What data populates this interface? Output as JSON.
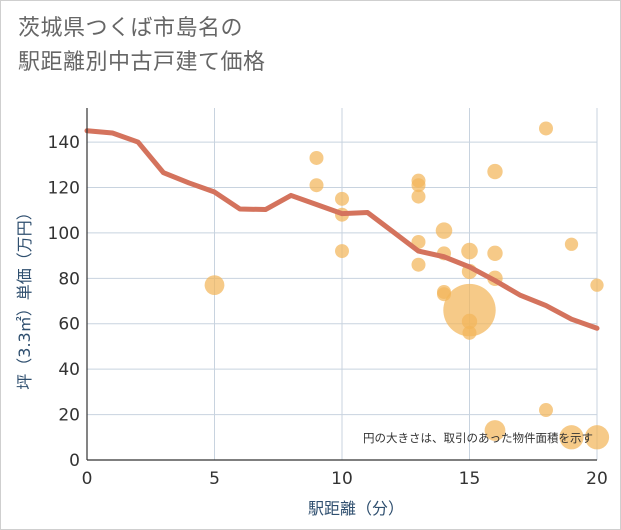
{
  "title_lines": [
    "茨城県つくば市島名の",
    "駅距離別中古戸建て価格"
  ],
  "chart_data": {
    "type": "scatter",
    "title": "茨城県つくば市島名の駅距離別中古戸建て価格",
    "xlabel": "駅距離（分）",
    "ylabel": "坪（3.3㎡）単価（万円）",
    "xlim": [
      0,
      20
    ],
    "ylim": [
      0,
      155
    ],
    "xticks": [
      0,
      5,
      10,
      15,
      20
    ],
    "yticks": [
      0,
      20,
      40,
      60,
      80,
      100,
      120,
      140
    ],
    "grid": true,
    "note": "円の大きさは、取引のあった物件面積を示す",
    "colors": {
      "bubble": "#f2b55a",
      "line": "#d4735d",
      "grid": "#c8d3df"
    },
    "series": [
      {
        "type": "scatter",
        "points": [
          {
            "x": 5,
            "y": 77,
            "s": 2
          },
          {
            "x": 9,
            "y": 133,
            "s": 1
          },
          {
            "x": 9,
            "y": 121,
            "s": 1
          },
          {
            "x": 10,
            "y": 115,
            "s": 1
          },
          {
            "x": 10,
            "y": 108,
            "s": 1
          },
          {
            "x": 10,
            "y": 92,
            "s": 1
          },
          {
            "x": 13,
            "y": 123,
            "s": 1
          },
          {
            "x": 13,
            "y": 121,
            "s": 1
          },
          {
            "x": 13,
            "y": 116,
            "s": 1
          },
          {
            "x": 13,
            "y": 96,
            "s": 1
          },
          {
            "x": 13,
            "y": 86,
            "s": 1
          },
          {
            "x": 14,
            "y": 101,
            "s": 1.4
          },
          {
            "x": 14,
            "y": 91,
            "s": 1
          },
          {
            "x": 14,
            "y": 74,
            "s": 1
          },
          {
            "x": 14,
            "y": 73,
            "s": 1
          },
          {
            "x": 15,
            "y": 92,
            "s": 1.4
          },
          {
            "x": 15,
            "y": 83,
            "s": 1.2
          },
          {
            "x": 15,
            "y": 66,
            "s": 14
          },
          {
            "x": 15,
            "y": 61,
            "s": 1.2
          },
          {
            "x": 15,
            "y": 56,
            "s": 1
          },
          {
            "x": 16,
            "y": 127,
            "s": 1.2
          },
          {
            "x": 16,
            "y": 91,
            "s": 1.2
          },
          {
            "x": 16,
            "y": 80,
            "s": 1.2
          },
          {
            "x": 16,
            "y": 13,
            "s": 2.2
          },
          {
            "x": 18,
            "y": 146,
            "s": 1
          },
          {
            "x": 18,
            "y": 22,
            "s": 1
          },
          {
            "x": 19,
            "y": 95,
            "s": 0.9
          },
          {
            "x": 19,
            "y": 10,
            "s": 3
          },
          {
            "x": 20,
            "y": 77,
            "s": 0.9
          },
          {
            "x": 20,
            "y": 10,
            "s": 3
          }
        ]
      },
      {
        "type": "line",
        "x": [
          0,
          1,
          2,
          3,
          4,
          5,
          6,
          7,
          8,
          9,
          10,
          11,
          12,
          13,
          14,
          15,
          16,
          17,
          18,
          19,
          20
        ],
        "y": [
          145,
          144,
          140,
          126.5,
          122,
          118,
          110.5,
          110.3,
          116.5,
          112.5,
          108.5,
          109,
          100.5,
          92,
          89.5,
          85,
          79,
          72.5,
          68,
          62,
          58
        ]
      }
    ]
  }
}
